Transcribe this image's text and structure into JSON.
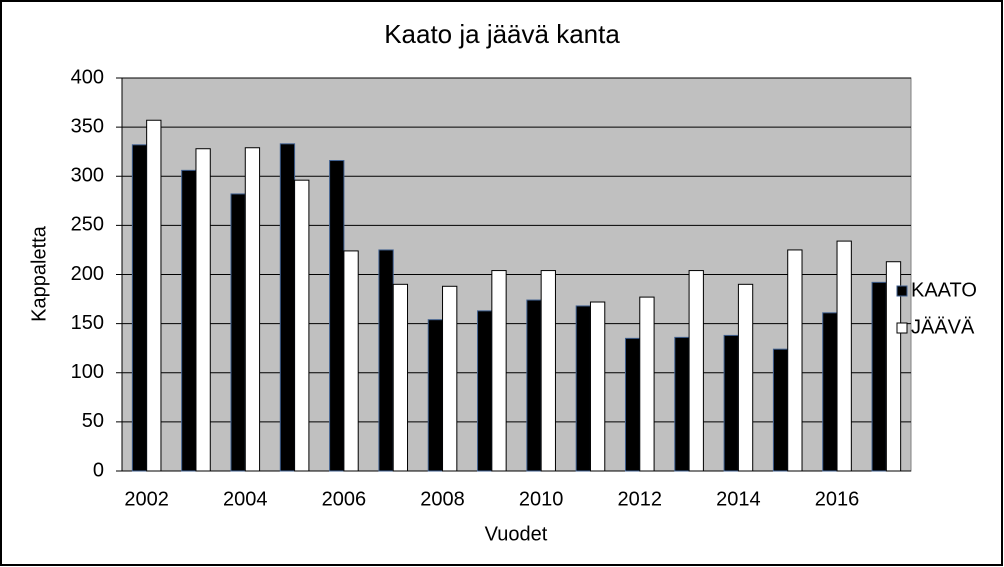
{
  "chart_data": {
    "type": "bar",
    "title": "Kaato ja jäävä kanta",
    "x_label": "Vuodet",
    "y_label": "Kappaletta",
    "categories": [
      "2002",
      null,
      "2004",
      null,
      "2006",
      null,
      "2008",
      null,
      "2010",
      null,
      "2012",
      null,
      "2014",
      null,
      "2016",
      null
    ],
    "series": [
      {
        "name": "KAATO",
        "color": "#000000",
        "values": [
          332,
          306,
          282,
          333,
          316,
          225,
          154,
          163,
          174,
          168,
          135,
          136,
          138,
          124,
          161,
          192
        ]
      },
      {
        "name": "JÄÄVÄ",
        "color": "#ffffff",
        "values": [
          357,
          328,
          329,
          296,
          224,
          190,
          188,
          204,
          204,
          172,
          177,
          204,
          190,
          225,
          234,
          213
        ]
      }
    ],
    "ylim": [
      0,
      400
    ],
    "yticks": [
      0,
      50,
      100,
      150,
      200,
      250,
      300,
      350,
      400
    ],
    "grid": true,
    "legend": "right",
    "plot_background": "#c0c0c0"
  }
}
